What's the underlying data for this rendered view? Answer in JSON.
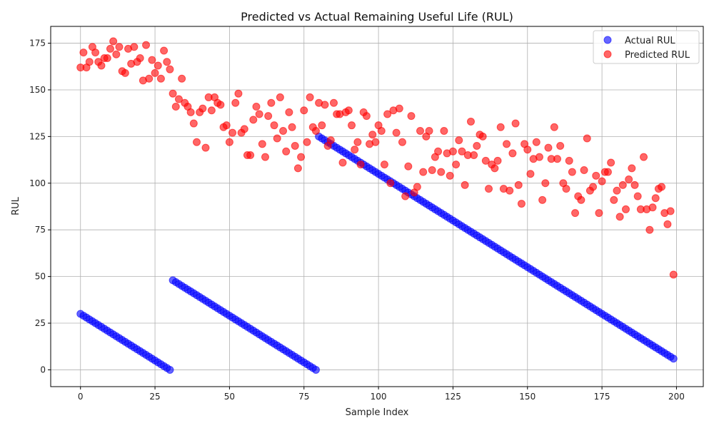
{
  "chart_data": {
    "type": "scatter",
    "title": "Predicted vs Actual Remaining Useful Life (RUL)",
    "xlabel": "Sample Index",
    "ylabel": "RUL",
    "xlim": [
      -10,
      209
    ],
    "ylim": [
      -9,
      184
    ],
    "xticks": [
      0,
      25,
      50,
      75,
      100,
      125,
      150,
      175,
      200
    ],
    "yticks": [
      0,
      25,
      50,
      75,
      100,
      125,
      150,
      175
    ],
    "grid": true,
    "legend_position": "top-right",
    "x": [
      0,
      1,
      2,
      3,
      4,
      5,
      6,
      7,
      8,
      9,
      10,
      11,
      12,
      13,
      14,
      15,
      16,
      17,
      18,
      19,
      20,
      21,
      22,
      23,
      24,
      25,
      26,
      27,
      28,
      29,
      30,
      31,
      32,
      33,
      34,
      35,
      36,
      37,
      38,
      39,
      40,
      41,
      42,
      43,
      44,
      45,
      46,
      47,
      48,
      49,
      50,
      51,
      52,
      53,
      54,
      55,
      56,
      57,
      58,
      59,
      60,
      61,
      62,
      63,
      64,
      65,
      66,
      67,
      68,
      69,
      70,
      71,
      72,
      73,
      74,
      75,
      76,
      77,
      78,
      79,
      80,
      81,
      82,
      83,
      84,
      85,
      86,
      87,
      88,
      89,
      90,
      91,
      92,
      93,
      94,
      95,
      96,
      97,
      98,
      99,
      100,
      101,
      102,
      103,
      104,
      105,
      106,
      107,
      108,
      109,
      110,
      111,
      112,
      113,
      114,
      115,
      116,
      117,
      118,
      119,
      120,
      121,
      122,
      123,
      124,
      125,
      126,
      127,
      128,
      129,
      130,
      131,
      132,
      133,
      134,
      135,
      136,
      137,
      138,
      139,
      140,
      141,
      142,
      143,
      144,
      145,
      146,
      147,
      148,
      149,
      150,
      151,
      152,
      153,
      154,
      155,
      156,
      157,
      158,
      159,
      160,
      161,
      162,
      163,
      164,
      165,
      166,
      167,
      168,
      169,
      170,
      171,
      172,
      173,
      174,
      175,
      176,
      177,
      178,
      179,
      180,
      181,
      182,
      183,
      184,
      185,
      186,
      187,
      188,
      189,
      190,
      191,
      192,
      193,
      194,
      195,
      196,
      197,
      198,
      199
    ],
    "series": [
      {
        "name": "Actual RUL",
        "color": "#0000ff",
        "values": [
          30,
          29,
          28,
          27,
          26,
          25,
          24,
          23,
          22,
          21,
          20,
          19,
          18,
          17,
          16,
          15,
          14,
          13,
          12,
          11,
          10,
          9,
          8,
          7,
          6,
          5,
          4,
          3,
          2,
          1,
          0,
          48,
          47,
          46,
          45,
          44,
          43,
          42,
          41,
          40,
          39,
          38,
          37,
          36,
          35,
          34,
          33,
          32,
          31,
          30,
          29,
          28,
          27,
          26,
          25,
          24,
          23,
          22,
          21,
          20,
          19,
          18,
          17,
          16,
          15,
          14,
          13,
          12,
          11,
          10,
          9,
          8,
          7,
          6,
          5,
          4,
          3,
          2,
          1,
          0,
          125,
          124,
          123,
          122,
          121,
          120,
          119,
          118,
          117,
          116,
          115,
          114,
          113,
          112,
          111,
          110,
          109,
          108,
          107,
          106,
          105,
          104,
          103,
          102,
          101,
          100,
          99,
          98,
          97,
          96,
          95,
          94,
          93,
          92,
          91,
          90,
          89,
          88,
          87,
          86,
          85,
          84,
          83,
          82,
          81,
          80,
          79,
          78,
          77,
          76,
          75,
          74,
          73,
          72,
          71,
          70,
          69,
          68,
          67,
          66,
          65,
          64,
          63,
          62,
          61,
          60,
          59,
          58,
          57,
          56,
          55,
          54,
          53,
          52,
          51,
          50,
          49,
          48,
          47,
          46,
          45,
          44,
          43,
          42,
          41,
          40,
          39,
          38,
          37,
          36,
          35,
          34,
          33,
          32,
          31,
          30,
          29,
          28,
          27,
          26,
          25,
          24,
          23,
          22,
          21,
          20,
          19,
          18,
          17,
          16,
          15,
          14,
          13,
          12,
          11,
          10,
          9,
          8,
          7,
          6
        ]
      },
      {
        "name": "Predicted RUL",
        "color": "#ff0000",
        "values": [
          162,
          170,
          162,
          165,
          173,
          170,
          165,
          163,
          167,
          167,
          172,
          176,
          169,
          173,
          160,
          159,
          172,
          164,
          173,
          165,
          167,
          155,
          174,
          156,
          166,
          159,
          163,
          156,
          171,
          165,
          161,
          148,
          141,
          145,
          156,
          143,
          141,
          138,
          132,
          122,
          138,
          140,
          119,
          146,
          139,
          146,
          143,
          142,
          130,
          131,
          122,
          127,
          143,
          148,
          127,
          129,
          115,
          115,
          134,
          141,
          137,
          121,
          114,
          136,
          143,
          131,
          124,
          146,
          128,
          117,
          138,
          130,
          120,
          108,
          114,
          139,
          122,
          146,
          130,
          128,
          143,
          131,
          142,
          120,
          123,
          143,
          137,
          137,
          111,
          138,
          139,
          131,
          118,
          122,
          110,
          138,
          136,
          121,
          126,
          122,
          131,
          128,
          110,
          137,
          100,
          139,
          127,
          140,
          122,
          93,
          109,
          136,
          95,
          98,
          128,
          106,
          125,
          128,
          107,
          114,
          117,
          106,
          128,
          116,
          104,
          117,
          110,
          123,
          117,
          99,
          115,
          133,
          115,
          120,
          126,
          125,
          112,
          97,
          110,
          108,
          112,
          130,
          97,
          121,
          96,
          116,
          132,
          99,
          89,
          121,
          118,
          105,
          113,
          122,
          114,
          91,
          100,
          119,
          113,
          130,
          113,
          120,
          100,
          97,
          112,
          106,
          84,
          93,
          91,
          107,
          124,
          96,
          98,
          104,
          84,
          101,
          106,
          106,
          111,
          91,
          96,
          82,
          99,
          86,
          102,
          108,
          99,
          93,
          86,
          114,
          86,
          75,
          87,
          92,
          97,
          98,
          84,
          78,
          85,
          51
        ]
      }
    ]
  }
}
